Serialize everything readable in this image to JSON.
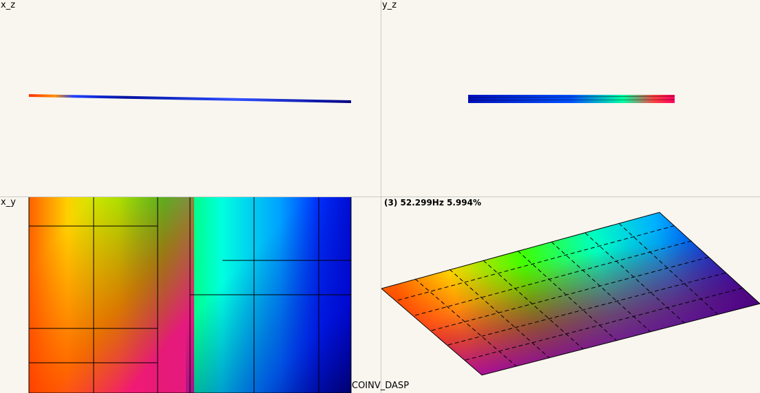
{
  "views": {
    "xz": {
      "label": "x_z"
    },
    "yz": {
      "label": "y_z"
    },
    "xy": {
      "label": "x_y"
    },
    "iso": {
      "label": "(3) 52.299Hz 5.994%"
    }
  },
  "status": {
    "label": "COINV_DASP"
  },
  "colors": {
    "background": "#f8f6ef",
    "divider": "#c8c8c8",
    "mesh_lines": "#000000",
    "colormap": [
      "#ff00a0",
      "#ff0000",
      "#ff8000",
      "#ffff00",
      "#00ff00",
      "#00ffff",
      "#0000ff",
      "#000060"
    ]
  }
}
